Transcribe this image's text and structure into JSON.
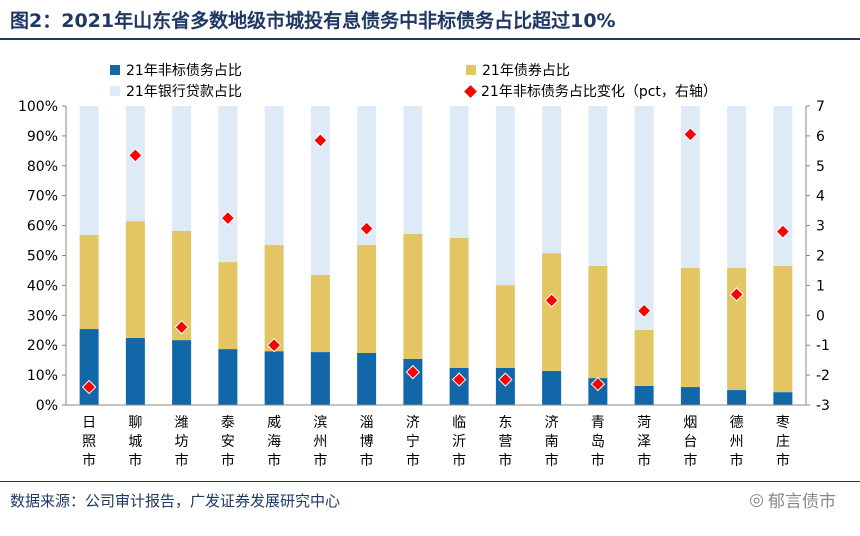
{
  "title": "图2：2021年山东省多数地级市城投有息债务中非标债务占比超过10%",
  "source": "数据来源：公司审计报告，广发证券发展研究中心",
  "logo_text": "郁言债市",
  "chart_data": {
    "type": "bar",
    "stacked": true,
    "categories": [
      "日照市",
      "聊城市",
      "潍坊市",
      "泰安市",
      "威海市",
      "滨州市",
      "淄博市",
      "济宁市",
      "临沂市",
      "东营市",
      "济南市",
      "青岛市",
      "菏泽市",
      "烟台市",
      "德州市",
      "枣庄市"
    ],
    "series": [
      {
        "name": "21年非标债务占比",
        "axis": "left",
        "color": "#1167a8",
        "values": [
          25.4,
          22.4,
          21.7,
          18.7,
          18.0,
          17.7,
          17.4,
          15.4,
          12.4,
          12.4,
          11.4,
          9.0,
          6.4,
          6.0,
          5.0,
          4.3
        ]
      },
      {
        "name": "21年债券占比",
        "axis": "left",
        "color": "#e3c663",
        "values": [
          31.5,
          39.1,
          36.5,
          29.1,
          35.5,
          25.8,
          36.1,
          41.8,
          43.5,
          27.7,
          39.4,
          37.5,
          18.7,
          39.8,
          40.8,
          42.2
        ]
      },
      {
        "name": "21年银行贷款占比",
        "axis": "left",
        "color": "#deebf7",
        "values": [
          43.1,
          38.5,
          41.8,
          52.2,
          46.5,
          56.5,
          46.5,
          42.8,
          44.1,
          59.9,
          49.2,
          53.5,
          74.9,
          54.2,
          54.2,
          53.5
        ]
      },
      {
        "name": "21年非标债务占比变化（pct，右轴）",
        "axis": "right",
        "type": "scatter",
        "marker": "diamond",
        "color": "#ff0000",
        "values": [
          -2.4,
          5.35,
          -0.4,
          3.25,
          -1.0,
          5.85,
          2.9,
          -1.9,
          -2.15,
          -2.15,
          0.5,
          -2.3,
          0.15,
          6.05,
          0.7,
          2.8
        ]
      }
    ],
    "y_left": {
      "range": [
        0,
        100
      ],
      "ticks": [
        "0%",
        "10%",
        "20%",
        "30%",
        "40%",
        "50%",
        "60%",
        "70%",
        "80%",
        "90%",
        "100%"
      ]
    },
    "y_right": {
      "range": [
        -3,
        7
      ],
      "ticks": [
        "-3",
        "-2",
        "-1",
        "0",
        "1",
        "2",
        "3",
        "4",
        "5",
        "6",
        "7"
      ]
    },
    "legend_position": "top",
    "grid": false
  }
}
